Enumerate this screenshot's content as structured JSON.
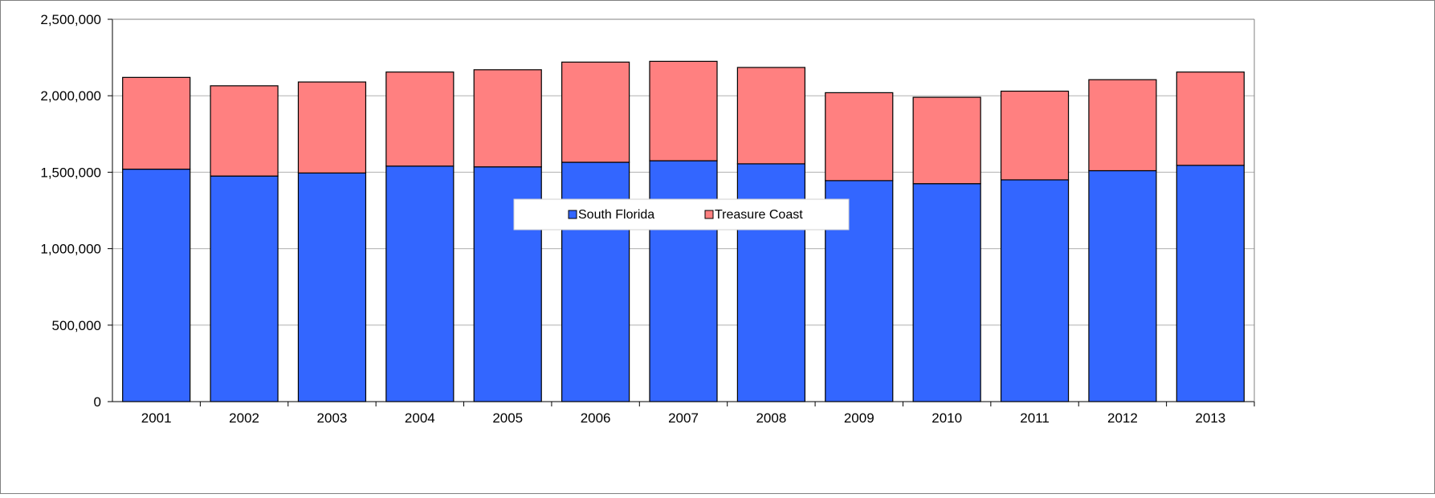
{
  "chart_data": {
    "type": "bar",
    "stacked": true,
    "categories": [
      "2001",
      "2002",
      "2003",
      "2004",
      "2005",
      "2006",
      "2007",
      "2008",
      "2009",
      "2010",
      "2011",
      "2012",
      "2013"
    ],
    "series": [
      {
        "name": "South Florida",
        "color": "#3366ff",
        "values": [
          1520000,
          1475000,
          1495000,
          1540000,
          1535000,
          1565000,
          1575000,
          1555000,
          1445000,
          1425000,
          1450000,
          1510000,
          1545000
        ]
      },
      {
        "name": "Treasure Coast",
        "color": "#ff8080",
        "values": [
          600000,
          590000,
          595000,
          615000,
          635000,
          655000,
          650000,
          630000,
          575000,
          565000,
          580000,
          595000,
          610000
        ]
      }
    ],
    "y_ticks": [
      "0",
      "500,000",
      "1,000,000",
      "1,500,000",
      "2,000,000",
      "2,500,000"
    ],
    "ylim": [
      0,
      2500000
    ],
    "grid": true,
    "legend_position": "center",
    "title": "",
    "xlabel": "",
    "ylabel": ""
  }
}
